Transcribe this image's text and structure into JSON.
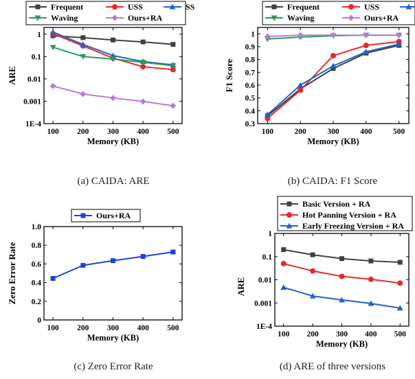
{
  "chart_data": [
    {
      "type": "line",
      "ylabel": "ARE",
      "xlabel": "Memory (KB)",
      "yscale": "log",
      "ylim": [
        0.0001,
        2
      ],
      "yticks": [
        0.0001,
        0.001,
        0.01,
        0.1,
        1
      ],
      "ytick_labels": [
        "1E-4",
        "0.001",
        "0.01",
        "0.1",
        "1"
      ],
      "xlim": [
        70,
        530
      ],
      "x": [
        100,
        200,
        300,
        400,
        500
      ],
      "xtick_labels": [
        "100",
        "200",
        "300",
        "400",
        "500"
      ],
      "caption": "(a)  CAIDA: ARE",
      "series": [
        {
          "name": "Frequent",
          "color": "#404040",
          "marker": "square",
          "values": [
            0.85,
            0.7,
            0.55,
            0.45,
            0.35
          ]
        },
        {
          "name": "USS",
          "color": "#e8282a",
          "marker": "circle",
          "values": [
            1.05,
            0.3,
            0.085,
            0.035,
            0.026
          ]
        },
        {
          "name": "SS",
          "color": "#1f64c8",
          "marker": "triangle",
          "values": [
            1.25,
            0.35,
            0.11,
            0.06,
            0.042
          ]
        },
        {
          "name": "Waving",
          "color": "#2a9a5a",
          "marker": "triangle-down",
          "values": [
            0.26,
            0.1,
            0.077,
            0.055,
            0.039
          ]
        },
        {
          "name": "Ours+RA",
          "color": "#b17ed8",
          "marker": "diamond",
          "values": [
            0.0048,
            0.0021,
            0.0014,
            0.00098,
            0.00063
          ]
        }
      ]
    },
    {
      "type": "line",
      "ylabel": "F1 Score",
      "xlabel": "Memory (KB)",
      "yscale": "linear",
      "ylim": [
        0.3,
        1.05
      ],
      "yticks": [
        0.3,
        0.4,
        0.5,
        0.6,
        0.7,
        0.8,
        0.9,
        1
      ],
      "ytick_labels": [
        "0.3",
        "0.4",
        "0.5",
        "0.6",
        "0.7",
        "0.8",
        "0.9",
        "1"
      ],
      "xlim": [
        70,
        530
      ],
      "x": [
        100,
        200,
        300,
        400,
        500
      ],
      "xtick_labels": [
        "100",
        "200",
        "300",
        "400",
        "500"
      ],
      "caption": "(b)  CAIDA: F1 Score",
      "series": [
        {
          "name": "Frequent",
          "color": "#404040",
          "marker": "square",
          "values": [
            0.36,
            0.57,
            0.73,
            0.85,
            0.91
          ]
        },
        {
          "name": "USS",
          "color": "#e8282a",
          "marker": "circle",
          "values": [
            0.34,
            0.56,
            0.83,
            0.91,
            0.94
          ]
        },
        {
          "name": "SS",
          "color": "#1f64c8",
          "marker": "triangle",
          "values": [
            0.37,
            0.6,
            0.75,
            0.86,
            0.92
          ]
        },
        {
          "name": "Waving",
          "color": "#2a9a5a",
          "marker": "triangle-down",
          "values": [
            0.96,
            0.975,
            0.985,
            0.99,
            0.99
          ]
        },
        {
          "name": "Ours+RA",
          "color": "#b17ed8",
          "marker": "diamond",
          "values": [
            0.98,
            0.99,
            0.99,
            0.99,
            0.99
          ]
        }
      ]
    },
    {
      "type": "line",
      "ylabel": "Zero Error Rate",
      "xlabel": "Memory (KB)",
      "yscale": "linear",
      "ylim": [
        0,
        1
      ],
      "yticks": [
        0,
        0.2,
        0.4,
        0.6,
        0.8,
        1.0
      ],
      "ytick_labels": [
        "0",
        "0.2",
        "0.4",
        "0.6",
        "0.8",
        "1.0"
      ],
      "xlim": [
        70,
        530
      ],
      "x": [
        100,
        200,
        300,
        400,
        500
      ],
      "xtick_labels": [
        "100",
        "200",
        "300",
        "400",
        "500"
      ],
      "caption": "(c)  Zero Error Rate",
      "series": [
        {
          "name": "Ours+RA",
          "color": "#1f3fe0",
          "marker": "square",
          "values": [
            0.445,
            0.585,
            0.635,
            0.68,
            0.728
          ]
        }
      ]
    },
    {
      "type": "line",
      "ylabel": "ARE",
      "xlabel": "Memory (KB)",
      "yscale": "log",
      "ylim": [
        0.0001,
        1
      ],
      "yticks": [
        0.0001,
        0.001,
        0.01,
        0.1,
        1
      ],
      "ytick_labels": [
        "1E-4",
        "0.001",
        "0.01",
        "0.1",
        "1"
      ],
      "xlim": [
        70,
        530
      ],
      "x": [
        100,
        200,
        300,
        400,
        500
      ],
      "xtick_labels": [
        "100",
        "200",
        "300",
        "400",
        "500"
      ],
      "caption": "(d)  ARE of three versions",
      "series": [
        {
          "name": "Basic Version + RA",
          "color": "#404040",
          "marker": "square",
          "values": [
            0.2,
            0.12,
            0.082,
            0.065,
            0.057
          ]
        },
        {
          "name": "Hot Panning Version + RA",
          "color": "#e8282a",
          "marker": "circle",
          "values": [
            0.05,
            0.024,
            0.014,
            0.0105,
            0.0072
          ]
        },
        {
          "name": "Early Freezing Version + RA",
          "color": "#1f64c8",
          "marker": "triangle",
          "values": [
            0.0047,
            0.002,
            0.00135,
            0.00095,
            0.0006
          ]
        }
      ]
    }
  ]
}
